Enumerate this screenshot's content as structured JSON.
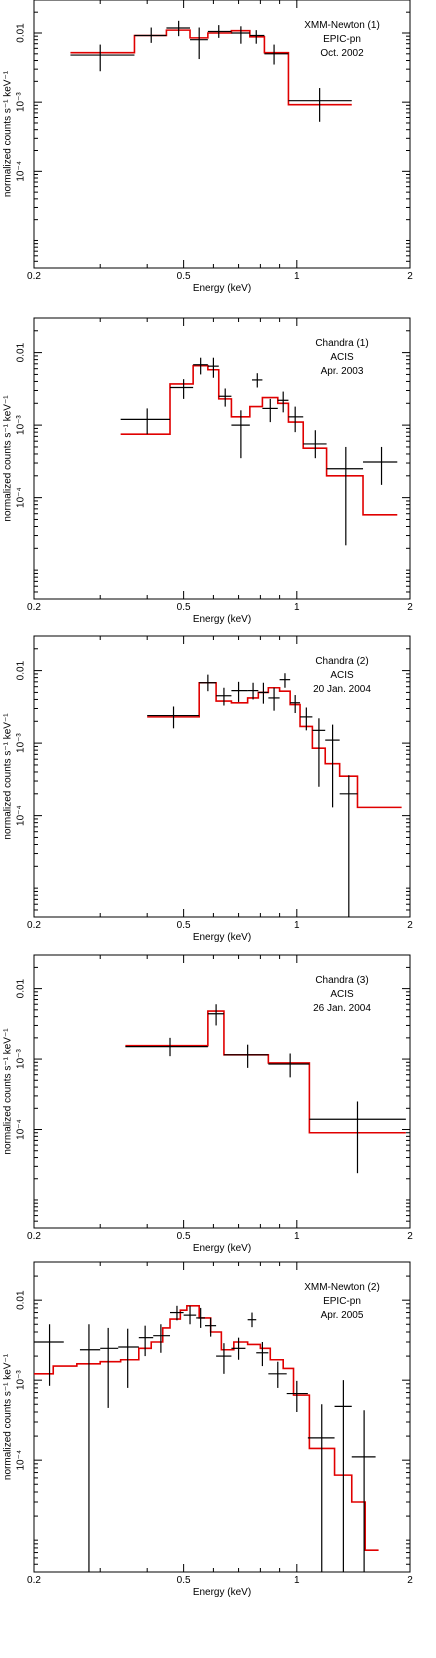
{
  "chart_data": [
    {
      "type": "line",
      "xscale": "log",
      "yscale": "log",
      "xlim": [
        0.2,
        2
      ],
      "ylim": [
        4e-06,
        0.03
      ],
      "xlabel": "Energy (keV)",
      "ylabel": "normalized counts s⁻¹ keV⁻¹",
      "x_ticks": [
        {
          "v": 0.2,
          "label": "0.2"
        },
        {
          "v": 0.5,
          "label": "0.5"
        },
        {
          "v": 1,
          "label": "1"
        },
        {
          "v": 2,
          "label": "2"
        }
      ],
      "y_ticks": [
        {
          "v": 0.01,
          "label": "0.01"
        },
        {
          "v": 0.001,
          "label": "10⁻³"
        },
        {
          "v": 0.0001,
          "label": "10⁻⁴"
        }
      ],
      "annotation": [
        "XMM-Newton (1)",
        "EPIC-pn",
        "Oct. 2002"
      ],
      "data": [
        {
          "xlo": 0.25,
          "xhi": 0.37,
          "x": 0.3,
          "y": 0.0048,
          "ylo": 0.0028,
          "yhi": 0.0068
        },
        {
          "xlo": 0.37,
          "xhi": 0.45,
          "x": 0.41,
          "y": 0.0092,
          "ylo": 0.0072,
          "yhi": 0.012
        },
        {
          "xlo": 0.45,
          "xhi": 0.52,
          "x": 0.485,
          "y": 0.0118,
          "ylo": 0.009,
          "yhi": 0.015
        },
        {
          "xlo": 0.52,
          "xhi": 0.58,
          "x": 0.55,
          "y": 0.008,
          "ylo": 0.0042,
          "yhi": 0.012
        },
        {
          "xlo": 0.58,
          "xhi": 0.67,
          "x": 0.62,
          "y": 0.0105,
          "ylo": 0.0085,
          "yhi": 0.013
        },
        {
          "xlo": 0.67,
          "xhi": 0.75,
          "x": 0.71,
          "y": 0.01,
          "ylo": 0.007,
          "yhi": 0.0125
        },
        {
          "xlo": 0.75,
          "xhi": 0.82,
          "x": 0.78,
          "y": 0.0092,
          "ylo": 0.007,
          "yhi": 0.011
        },
        {
          "xlo": 0.82,
          "xhi": 0.95,
          "x": 0.87,
          "y": 0.005,
          "ylo": 0.0035,
          "yhi": 0.0068
        },
        {
          "xlo": 0.95,
          "xhi": 1.4,
          "x": 1.15,
          "y": 0.00105,
          "ylo": 0.00052,
          "yhi": 0.0016
        }
      ],
      "model": {
        "edges": [
          0.25,
          0.37,
          0.45,
          0.52,
          0.58,
          0.67,
          0.75,
          0.82,
          0.95,
          1.4
        ],
        "values": [
          0.0052,
          0.0092,
          0.011,
          0.0085,
          0.01,
          0.0108,
          0.0088,
          0.0052,
          0.00092
        ]
      }
    },
    {
      "type": "line",
      "xscale": "log",
      "yscale": "log",
      "xlim": [
        0.2,
        2
      ],
      "ylim": [
        4e-06,
        0.03
      ],
      "xlabel": "Energy (keV)",
      "ylabel": "normalized counts s⁻¹ keV⁻¹",
      "x_ticks": [
        {
          "v": 0.2,
          "label": "0.2"
        },
        {
          "v": 0.5,
          "label": "0.5"
        },
        {
          "v": 1,
          "label": "1"
        },
        {
          "v": 2,
          "label": "2"
        }
      ],
      "y_ticks": [
        {
          "v": 0.01,
          "label": "0.01"
        },
        {
          "v": 0.001,
          "label": "10⁻³"
        },
        {
          "v": 0.0001,
          "label": "10⁻⁴"
        }
      ],
      "annotation": [
        "Chandra (1)",
        "ACIS",
        "Apr. 2003"
      ],
      "data": [
        {
          "xlo": 0.34,
          "xhi": 0.46,
          "x": 0.4,
          "y": 0.0012,
          "ylo": 0.00075,
          "yhi": 0.0017
        },
        {
          "xlo": 0.46,
          "xhi": 0.53,
          "x": 0.5,
          "y": 0.0033,
          "ylo": 0.0023,
          "yhi": 0.0043
        },
        {
          "xlo": 0.53,
          "xhi": 0.58,
          "x": 0.555,
          "y": 0.0068,
          "ylo": 0.005,
          "yhi": 0.0085
        },
        {
          "xlo": 0.58,
          "xhi": 0.62,
          "x": 0.6,
          "y": 0.0065,
          "ylo": 0.0045,
          "yhi": 0.0085
        },
        {
          "xlo": 0.62,
          "xhi": 0.67,
          "x": 0.645,
          "y": 0.0025,
          "ylo": 0.0018,
          "yhi": 0.0032
        },
        {
          "xlo": 0.67,
          "xhi": 0.75,
          "x": 0.71,
          "y": 0.001,
          "ylo": 0.00035,
          "yhi": 0.0016
        },
        {
          "xlo": 0.76,
          "xhi": 0.81,
          "x": 0.785,
          "y": 0.0042,
          "ylo": 0.0033,
          "yhi": 0.0052
        },
        {
          "xlo": 0.81,
          "xhi": 0.89,
          "x": 0.85,
          "y": 0.0017,
          "ylo": 0.0011,
          "yhi": 0.0023
        },
        {
          "xlo": 0.89,
          "xhi": 0.95,
          "x": 0.92,
          "y": 0.0022,
          "ylo": 0.0015,
          "yhi": 0.0029
        },
        {
          "xlo": 0.95,
          "xhi": 1.04,
          "x": 0.99,
          "y": 0.0013,
          "ylo": 0.0008,
          "yhi": 0.0018
        },
        {
          "xlo": 1.04,
          "xhi": 1.2,
          "x": 1.12,
          "y": 0.00055,
          "ylo": 0.00035,
          "yhi": 0.00085
        },
        {
          "xlo": 1.2,
          "xhi": 1.5,
          "x": 1.35,
          "y": 0.00025,
          "ylo": 2.2e-05,
          "yhi": 0.0005
        },
        {
          "xlo": 1.5,
          "xhi": 1.85,
          "x": 1.68,
          "y": 0.00031,
          "ylo": 0.00015,
          "yhi": 0.0005
        }
      ],
      "model": {
        "edges": [
          0.34,
          0.46,
          0.53,
          0.58,
          0.62,
          0.67,
          0.75,
          0.81,
          0.89,
          0.95,
          1.04,
          1.2,
          1.5,
          1.85
        ],
        "values": [
          0.00075,
          0.0037,
          0.0066,
          0.0058,
          0.0023,
          0.0013,
          0.0018,
          0.0024,
          0.002,
          0.0011,
          0.00048,
          0.0002,
          5.8e-05
        ]
      }
    },
    {
      "type": "line",
      "xscale": "log",
      "yscale": "log",
      "xlim": [
        0.2,
        2
      ],
      "ylim": [
        4e-06,
        0.03
      ],
      "xlabel": "Energy (keV)",
      "ylabel": "normalized counts s⁻¹ keV⁻¹",
      "x_ticks": [
        {
          "v": 0.2,
          "label": "0.2"
        },
        {
          "v": 0.5,
          "label": "0.5"
        },
        {
          "v": 1,
          "label": "1"
        },
        {
          "v": 2,
          "label": "2"
        }
      ],
      "y_ticks": [
        {
          "v": 0.01,
          "label": "0.01"
        },
        {
          "v": 0.001,
          "label": "10⁻³"
        },
        {
          "v": 0.0001,
          "label": "10⁻⁴"
        }
      ],
      "annotation": [
        "Chandra (2)",
        "ACIS",
        "20 Jan. 2004"
      ],
      "data": [
        {
          "xlo": 0.4,
          "xhi": 0.55,
          "x": 0.47,
          "y": 0.0024,
          "ylo": 0.0016,
          "yhi": 0.0032
        },
        {
          "xlo": 0.55,
          "xhi": 0.61,
          "x": 0.58,
          "y": 0.0068,
          "ylo": 0.0052,
          "yhi": 0.0088
        },
        {
          "xlo": 0.61,
          "xhi": 0.67,
          "x": 0.64,
          "y": 0.0045,
          "ylo": 0.0033,
          "yhi": 0.0058
        },
        {
          "xlo": 0.67,
          "xhi": 0.74,
          "x": 0.7,
          "y": 0.0053,
          "ylo": 0.0037,
          "yhi": 0.007
        },
        {
          "xlo": 0.74,
          "xhi": 0.79,
          "x": 0.765,
          "y": 0.0053,
          "ylo": 0.004,
          "yhi": 0.0068
        },
        {
          "xlo": 0.79,
          "xhi": 0.84,
          "x": 0.815,
          "y": 0.005,
          "ylo": 0.0035,
          "yhi": 0.0068
        },
        {
          "xlo": 0.84,
          "xhi": 0.9,
          "x": 0.87,
          "y": 0.0042,
          "ylo": 0.0028,
          "yhi": 0.0058
        },
        {
          "xlo": 0.9,
          "xhi": 0.96,
          "x": 0.93,
          "y": 0.0075,
          "ylo": 0.0058,
          "yhi": 0.0092
        },
        {
          "xlo": 0.96,
          "xhi": 1.02,
          "x": 0.99,
          "y": 0.0036,
          "ylo": 0.0026,
          "yhi": 0.0046
        },
        {
          "xlo": 1.02,
          "xhi": 1.1,
          "x": 1.06,
          "y": 0.0023,
          "ylo": 0.0015,
          "yhi": 0.0031
        },
        {
          "xlo": 1.1,
          "xhi": 1.19,
          "x": 1.145,
          "y": 0.0015,
          "ylo": 0.00025,
          "yhi": 0.0022
        },
        {
          "xlo": 1.19,
          "xhi": 1.3,
          "x": 1.245,
          "y": 0.0011,
          "ylo": 0.00013,
          "yhi": 0.0018
        },
        {
          "xlo": 1.3,
          "xhi": 1.45,
          "x": 1.375,
          "y": 0.0002,
          "ylo": 3.5e-06,
          "yhi": 0.00036
        }
      ],
      "model": {
        "edges": [
          0.4,
          0.55,
          0.61,
          0.67,
          0.74,
          0.79,
          0.84,
          0.9,
          0.96,
          1.02,
          1.1,
          1.19,
          1.3,
          1.45,
          1.9
        ],
        "values": [
          0.0023,
          0.0068,
          0.0038,
          0.0036,
          0.0042,
          0.005,
          0.0058,
          0.0052,
          0.0034,
          0.0017,
          0.00085,
          0.00052,
          0.00035,
          0.00013
        ]
      }
    },
    {
      "type": "line",
      "xscale": "log",
      "yscale": "log",
      "xlim": [
        0.2,
        2
      ],
      "ylim": [
        4e-06,
        0.03
      ],
      "xlabel": "Energy (keV)",
      "ylabel": "normalized counts s⁻¹ keV⁻¹",
      "x_ticks": [
        {
          "v": 0.2,
          "label": "0.2"
        },
        {
          "v": 0.5,
          "label": "0.5"
        },
        {
          "v": 1,
          "label": "1"
        },
        {
          "v": 2,
          "label": "2"
        }
      ],
      "y_ticks": [
        {
          "v": 0.01,
          "label": "0.01"
        },
        {
          "v": 0.001,
          "label": "10⁻³"
        },
        {
          "v": 0.0001,
          "label": "10⁻⁴"
        }
      ],
      "annotation": [
        "Chandra (3)",
        "ACIS",
        "26 Jan. 2004"
      ],
      "data": [
        {
          "xlo": 0.35,
          "xhi": 0.58,
          "x": 0.46,
          "y": 0.0015,
          "ylo": 0.0011,
          "yhi": 0.002
        },
        {
          "xlo": 0.58,
          "xhi": 0.64,
          "x": 0.61,
          "y": 0.0044,
          "ylo": 0.003,
          "yhi": 0.006
        },
        {
          "xlo": 0.64,
          "xhi": 0.84,
          "x": 0.74,
          "y": 0.00115,
          "ylo": 0.00075,
          "yhi": 0.0016
        },
        {
          "xlo": 0.84,
          "xhi": 1.08,
          "x": 0.96,
          "y": 0.00085,
          "ylo": 0.00055,
          "yhi": 0.0012
        },
        {
          "xlo": 1.08,
          "xhi": 1.95,
          "x": 1.45,
          "y": 0.00014,
          "ylo": 2.4e-05,
          "yhi": 0.00025
        }
      ],
      "model": {
        "edges": [
          0.35,
          0.58,
          0.64,
          0.84,
          1.08,
          1.95
        ],
        "values": [
          0.00155,
          0.0048,
          0.00115,
          0.00088,
          9e-05
        ]
      }
    },
    {
      "type": "line",
      "xscale": "log",
      "yscale": "log",
      "xlim": [
        0.2,
        2
      ],
      "ylim": [
        4e-06,
        0.03
      ],
      "xlabel": "Energy (keV)",
      "ylabel": "normalized counts s⁻¹ keV⁻¹",
      "x_ticks": [
        {
          "v": 0.2,
          "label": "0.2"
        },
        {
          "v": 0.5,
          "label": "0.5"
        },
        {
          "v": 1,
          "label": "1"
        },
        {
          "v": 2,
          "label": "2"
        }
      ],
      "y_ticks": [
        {
          "v": 0.01,
          "label": "0.01"
        },
        {
          "v": 0.001,
          "label": "10⁻³"
        },
        {
          "v": 0.0001,
          "label": "10⁻⁴"
        }
      ],
      "annotation": [
        "XMM-Newton (2)",
        "EPIC-pn",
        "Apr. 2005"
      ],
      "data": [
        {
          "xlo": 0.2,
          "xhi": 0.24,
          "x": 0.22,
          "y": 0.003,
          "ylo": 0.00085,
          "yhi": 0.005
        },
        {
          "xlo": 0.265,
          "xhi": 0.3,
          "x": 0.28,
          "y": 0.0024,
          "ylo": 1e-06,
          "yhi": 0.005
        },
        {
          "xlo": 0.3,
          "xhi": 0.335,
          "x": 0.315,
          "y": 0.0025,
          "ylo": 0.00045,
          "yhi": 0.0045
        },
        {
          "xlo": 0.335,
          "xhi": 0.38,
          "x": 0.355,
          "y": 0.0026,
          "ylo": 0.0008,
          "yhi": 0.0044
        },
        {
          "xlo": 0.38,
          "xhi": 0.415,
          "x": 0.395,
          "y": 0.0034,
          "ylo": 0.002,
          "yhi": 0.0048
        },
        {
          "xlo": 0.415,
          "xhi": 0.46,
          "x": 0.435,
          "y": 0.0036,
          "ylo": 0.0022,
          "yhi": 0.005
        },
        {
          "xlo": 0.46,
          "xhi": 0.5,
          "x": 0.48,
          "y": 0.007,
          "ylo": 0.0056,
          "yhi": 0.0085
        },
        {
          "xlo": 0.5,
          "xhi": 0.54,
          "x": 0.52,
          "y": 0.0065,
          "ylo": 0.005,
          "yhi": 0.0085
        },
        {
          "xlo": 0.54,
          "xhi": 0.57,
          "x": 0.555,
          "y": 0.006,
          "ylo": 0.0045,
          "yhi": 0.008
        },
        {
          "xlo": 0.57,
          "xhi": 0.61,
          "x": 0.59,
          "y": 0.0048,
          "ylo": 0.0035,
          "yhi": 0.006
        },
        {
          "xlo": 0.61,
          "xhi": 0.67,
          "x": 0.64,
          "y": 0.002,
          "ylo": 0.0012,
          "yhi": 0.0029
        },
        {
          "xlo": 0.67,
          "xhi": 0.73,
          "x": 0.7,
          "y": 0.0025,
          "ylo": 0.0018,
          "yhi": 0.0034
        },
        {
          "xlo": 0.74,
          "xhi": 0.78,
          "x": 0.76,
          "y": 0.0057,
          "ylo": 0.0046,
          "yhi": 0.007
        },
        {
          "xlo": 0.78,
          "xhi": 0.84,
          "x": 0.81,
          "y": 0.0022,
          "ylo": 0.0015,
          "yhi": 0.003
        },
        {
          "xlo": 0.84,
          "xhi": 0.94,
          "x": 0.89,
          "y": 0.0012,
          "ylo": 0.0008,
          "yhi": 0.0017
        },
        {
          "xlo": 0.94,
          "xhi": 1.07,
          "x": 1.0,
          "y": 0.00068,
          "ylo": 0.0004,
          "yhi": 0.00098
        },
        {
          "xlo": 1.07,
          "xhi": 1.26,
          "x": 1.165,
          "y": 0.00019,
          "ylo": 3.5e-06,
          "yhi": 0.0005
        },
        {
          "xlo": 1.26,
          "xhi": 1.4,
          "x": 1.33,
          "y": 0.00047,
          "ylo": 3.5e-06,
          "yhi": 0.001
        },
        {
          "xlo": 1.4,
          "xhi": 1.62,
          "x": 1.51,
          "y": 0.00011,
          "ylo": 3.5e-06,
          "yhi": 0.00042
        }
      ],
      "model": {
        "edges": [
          0.2,
          0.225,
          0.26,
          0.3,
          0.34,
          0.38,
          0.41,
          0.44,
          0.46,
          0.49,
          0.51,
          0.55,
          0.59,
          0.63,
          0.68,
          0.74,
          0.8,
          0.85,
          0.92,
          0.98,
          1.08,
          1.26,
          1.4,
          1.52,
          1.65
        ],
        "values": [
          0.0012,
          0.0015,
          0.0016,
          0.0017,
          0.0018,
          0.0025,
          0.003,
          0.0045,
          0.0058,
          0.0075,
          0.0085,
          0.006,
          0.004,
          0.0024,
          0.003,
          0.0028,
          0.0025,
          0.0018,
          0.0014,
          0.00065,
          0.00014,
          6.5e-05,
          3e-05,
          7.5e-06
        ]
      }
    }
  ]
}
